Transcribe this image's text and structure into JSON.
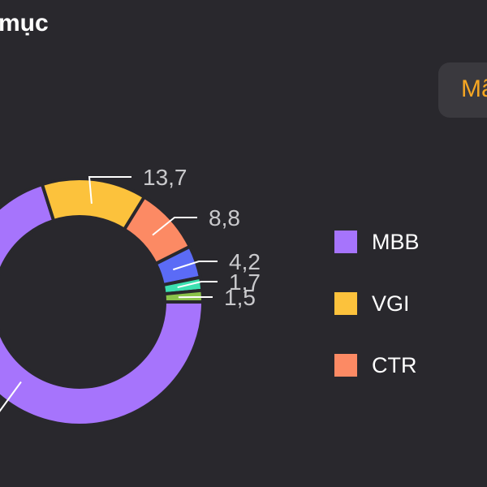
{
  "header": {
    "title": "mục"
  },
  "tab": {
    "label": "Mã",
    "color": "#f5a623"
  },
  "legend": [
    {
      "label": "MBB",
      "color": "#a674fc"
    },
    {
      "label": "VGI",
      "color": "#fcc23c"
    },
    {
      "label": "CTR",
      "color": "#fc8a64"
    }
  ],
  "chart_data": {
    "type": "pie",
    "title": "",
    "donut": true,
    "slices": [
      {
        "name": "MBB",
        "value": 70.1,
        "label": "",
        "color": "#a674fc"
      },
      {
        "name": "VGI",
        "value": 13.7,
        "label": "13,7",
        "color": "#fcc23c"
      },
      {
        "name": "CTR",
        "value": 8.8,
        "label": "8,8",
        "color": "#fc8a64"
      },
      {
        "name": "",
        "value": 4.2,
        "label": "4,2",
        "color": "#5b6bf6"
      },
      {
        "name": "",
        "value": 1.7,
        "label": "1,7",
        "color": "#3ce0b0"
      },
      {
        "name": "",
        "value": 1.5,
        "label": "1,5",
        "color": "#8bc34a"
      }
    ]
  }
}
